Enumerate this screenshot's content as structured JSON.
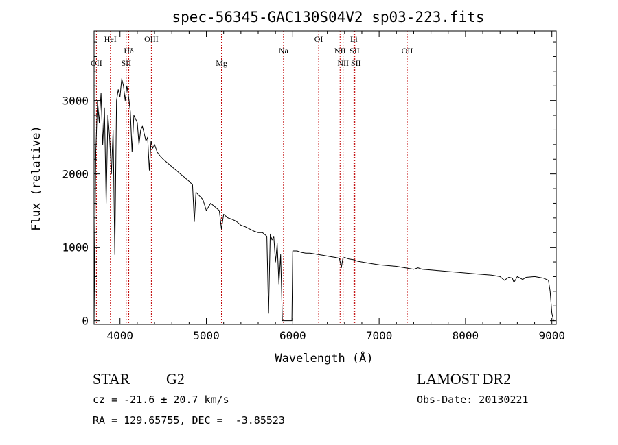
{
  "colors": {
    "spectrum": "#000000",
    "line_marker": "#c00000",
    "axes": "#000000"
  },
  "chart_data": {
    "type": "line",
    "title": "spec-56345-GAC130S04V2_sp03-223.fits",
    "xlabel": "Wavelength (Å)",
    "ylabel": "Flux (relative)",
    "xlim": [
      3700,
      9050
    ],
    "ylim": [
      -50,
      3950
    ],
    "xticks": [
      4000,
      5000,
      6000,
      7000,
      8000,
      9000
    ],
    "yticks": [
      0,
      1000,
      2000,
      3000
    ],
    "grid": false,
    "series": [
      {
        "x": [
          3700,
          3720,
          3740,
          3760,
          3780,
          3800,
          3820,
          3840,
          3860,
          3880,
          3900,
          3920,
          3940,
          3960,
          3980,
          4000,
          4020,
          4040,
          4060,
          4080,
          4100,
          4120,
          4140,
          4160,
          4180,
          4200,
          4220,
          4240,
          4260,
          4280,
          4300,
          4320,
          4340,
          4360,
          4380,
          4400,
          4430,
          4460,
          4500,
          4550,
          4600,
          4650,
          4700,
          4750,
          4800,
          4840,
          4861,
          4880,
          4920,
          4960,
          5000,
          5050,
          5100,
          5150,
          5175,
          5200,
          5250,
          5300,
          5350,
          5400,
          5450,
          5500,
          5550,
          5600,
          5650,
          5700,
          5720,
          5740,
          5760,
          5780,
          5800,
          5820,
          5840,
          5860,
          5880,
          5900,
          5950,
          5990,
          6000,
          6050,
          6100,
          6150,
          6200,
          6250,
          6300,
          6350,
          6400,
          6450,
          6500,
          6540,
          6563,
          6580,
          6600,
          6650,
          6700,
          6750,
          6800,
          6900,
          7000,
          7100,
          7200,
          7300,
          7400,
          7450,
          7500,
          7600,
          7700,
          7800,
          7900,
          8000,
          8100,
          8200,
          8300,
          8400,
          8450,
          8500,
          8542,
          8560,
          8600,
          8662,
          8700,
          8800,
          8900,
          8960,
          8980,
          9000,
          9020,
          9030
        ],
        "y": [
          0,
          2300,
          3000,
          2700,
          3100,
          2400,
          2900,
          1600,
          2800,
          2500,
          2000,
          2600,
          900,
          3000,
          3150,
          3050,
          3300,
          3200,
          3000,
          3200,
          3050,
          2850,
          2300,
          2800,
          2750,
          2700,
          2400,
          2600,
          2650,
          2550,
          2450,
          2500,
          2050,
          2450,
          2350,
          2400,
          2300,
          2250,
          2200,
          2150,
          2100,
          2050,
          2000,
          1950,
          1900,
          1850,
          1350,
          1750,
          1700,
          1650,
          1500,
          1600,
          1550,
          1500,
          1250,
          1450,
          1400,
          1380,
          1350,
          1300,
          1280,
          1250,
          1220,
          1200,
          1200,
          1150,
          100,
          1180,
          1100,
          1150,
          800,
          1050,
          500,
          900,
          0,
          0,
          0,
          0,
          950,
          950,
          930,
          920,
          920,
          910,
          900,
          890,
          880,
          870,
          860,
          850,
          720,
          850,
          860,
          840,
          830,
          810,
          800,
          780,
          760,
          750,
          740,
          720,
          700,
          720,
          700,
          690,
          680,
          670,
          660,
          650,
          640,
          630,
          620,
          600,
          550,
          590,
          580,
          520,
          600,
          560,
          590,
          600,
          580,
          550,
          400,
          100,
          0,
          0
        ]
      }
    ],
    "line_markers": [
      {
        "name": "OII",
        "x": 3727,
        "row": 3
      },
      {
        "name": "HeI",
        "x": 3889,
        "row": 1
      },
      {
        "name": "Hδ",
        "x": 4102,
        "row": 2
      },
      {
        "name": "SII",
        "x": 4072,
        "row": 3
      },
      {
        "name": "OIII",
        "x": 4363,
        "row": 1
      },
      {
        "name": "Mg",
        "x": 5175,
        "row": 3
      },
      {
        "name": "Na",
        "x": 5893,
        "row": 2
      },
      {
        "name": "OI",
        "x": 6300,
        "row": 1
      },
      {
        "name": "NII",
        "x": 6548,
        "row": 2
      },
      {
        "name": "NII",
        "x": 6583,
        "row": 3
      },
      {
        "name": "Li",
        "x": 6708,
        "row": 1
      },
      {
        "name": "SII",
        "x": 6716,
        "row": 2
      },
      {
        "name": "SII",
        "x": 6731,
        "row": 3
      },
      {
        "name": "OII",
        "x": 7325,
        "row": 2
      }
    ]
  },
  "info": {
    "object_class": "STAR",
    "subclass": "G2",
    "survey": "LAMOST DR2",
    "redshift": "cz = -21.6 ± 20.7 km/s",
    "obs_date": "Obs-Date: 20130221",
    "coords": "RA = 129.65755, DEC =  -3.85523"
  }
}
